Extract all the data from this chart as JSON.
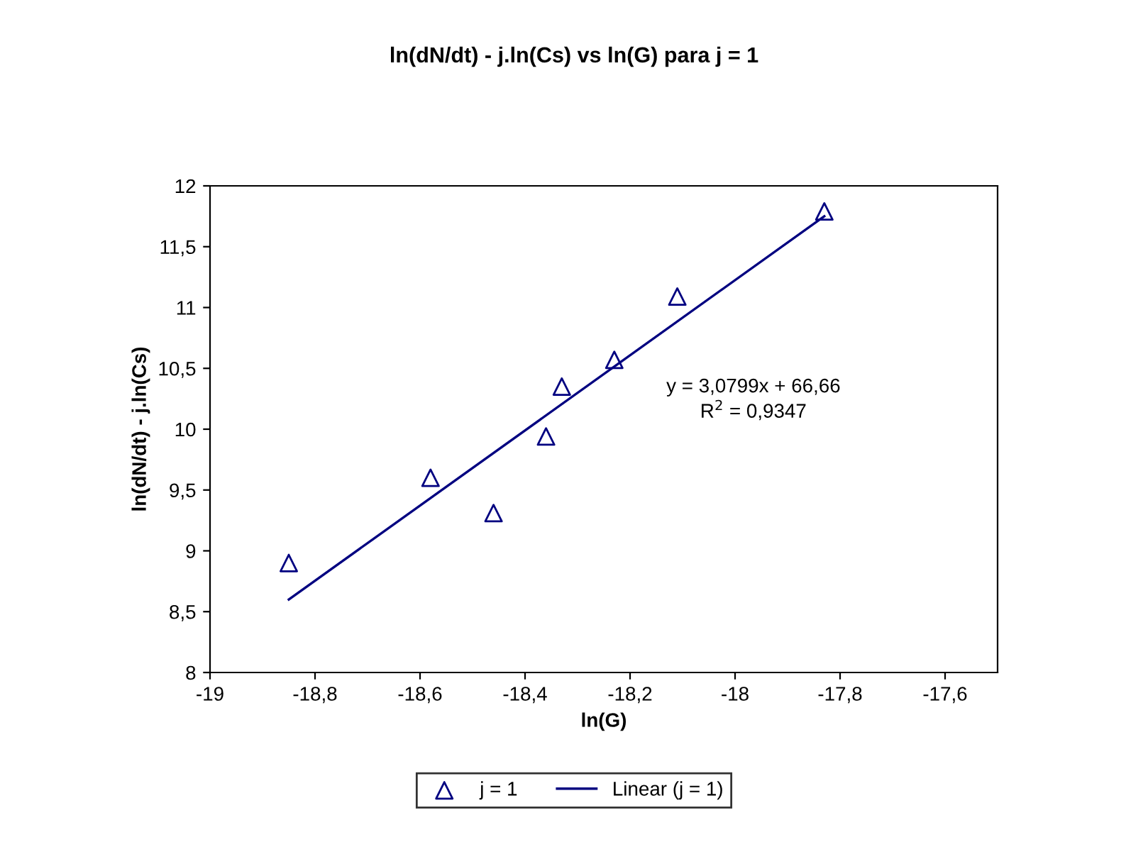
{
  "chart_data": {
    "type": "scatter",
    "title": "ln(dN/dt) - j.ln(Cs) vs ln(G) para j = 1",
    "xlabel": "ln(G)",
    "ylabel": "ln(dN/dt) - j.ln(Cs)",
    "xlim": [
      -19,
      -17.5
    ],
    "ylim": [
      8,
      12
    ],
    "xticks": [
      -19,
      {
        "value": -18.8,
        "label": "-18,8"
      },
      {
        "value": -18.6,
        "label": "-18,6"
      },
      {
        "value": -18.4,
        "label": "-18,4"
      },
      {
        "value": -18.2,
        "label": "-18,2"
      },
      -18,
      {
        "value": -17.8,
        "label": "-17,8"
      },
      {
        "value": -17.6,
        "label": "-17,6"
      }
    ],
    "yticks": [
      8,
      {
        "value": 8.5,
        "label": "8,5"
      },
      9,
      {
        "value": 9.5,
        "label": "9,5"
      },
      10,
      {
        "value": 10.5,
        "label": "10,5"
      },
      11,
      {
        "value": 11.5,
        "label": "11,5"
      },
      12
    ],
    "grid": false,
    "legend": "bottom",
    "annotations": [
      "y = 3,0799x + 66,66\nR$^{2}$ = 0,9347"
    ],
    "series": [
      {
        "name": "j = 1",
        "color": "#000080",
        "marker": "triangle",
        "x": [
          -18.85,
          -18.58,
          -18.46,
          -18.36,
          -18.33,
          -18.23,
          -18.11,
          -17.83
        ],
        "values": [
          8.9,
          9.6,
          9.31,
          9.94,
          10.35,
          10.57,
          11.09,
          11.79
        ]
      },
      {
        "name": "Linear (j = 1)",
        "type": "line",
        "color": "#000080",
        "marker": "none",
        "line_style": "solid",
        "x": [
          -18.85,
          -17.83
        ],
        "values": [
          8.6,
          11.75
        ]
      }
    ]
  }
}
